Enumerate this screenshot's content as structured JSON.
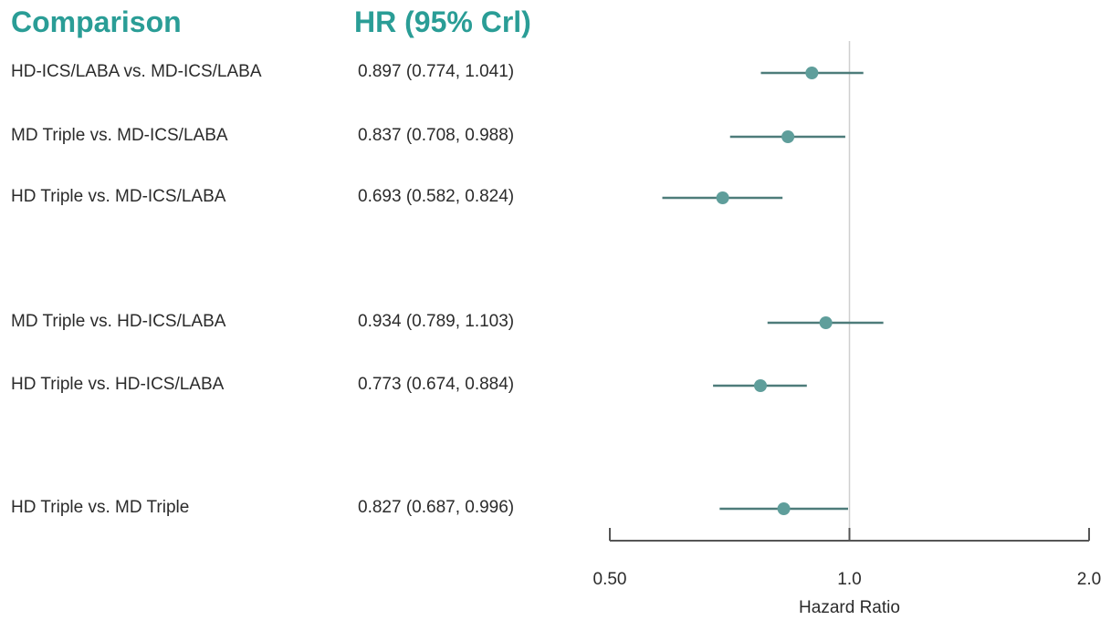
{
  "headers": {
    "comparison": "Comparison",
    "hr": "HR (95%  Crl)"
  },
  "chart_data": {
    "type": "scatter",
    "subtype": "forest-plot",
    "xlabel": "Hazard Ratio",
    "x_scale": "log",
    "xlim": [
      0.5,
      2.0
    ],
    "x_ticks": [
      {
        "value": 0.5,
        "label": "0.50"
      },
      {
        "value": 1.0,
        "label": "1.0"
      },
      {
        "value": 2.0,
        "label": "2.0"
      }
    ],
    "reference_line": 1.0,
    "marker_color": "#5f9e9b",
    "line_color": "#4d7c7a",
    "rows": [
      {
        "label": "HD-ICS/LABA vs. MD-ICS/LABA",
        "hr_text": "0.897 (0.774, 1.041)",
        "hr": 0.897,
        "lower": 0.774,
        "upper": 1.041
      },
      {
        "label": "MD Triple vs. MD-ICS/LABA",
        "hr_text": "0.837 (0.708, 0.988)",
        "hr": 0.837,
        "lower": 0.708,
        "upper": 0.988
      },
      {
        "label": "HD Triple vs. MD-ICS/LABA",
        "hr_text": "0.693 (0.582, 0.824)",
        "hr": 0.693,
        "lower": 0.582,
        "upper": 0.824
      },
      {
        "label": "MD Triple vs. HD-ICS/LABA",
        "hr_text": "0.934 (0.789, 1.103)",
        "hr": 0.934,
        "lower": 0.789,
        "upper": 1.103
      },
      {
        "label": "HD Triple vs. HD-ICS/LABA",
        "hr_text": "0.773 (0.674, 0.884)",
        "hr": 0.773,
        "lower": 0.674,
        "upper": 0.884
      },
      {
        "label": "HD Triple vs. MD Triple",
        "hr_text": "0.827 (0.687, 0.996)",
        "hr": 0.827,
        "lower": 0.687,
        "upper": 0.996
      }
    ]
  }
}
